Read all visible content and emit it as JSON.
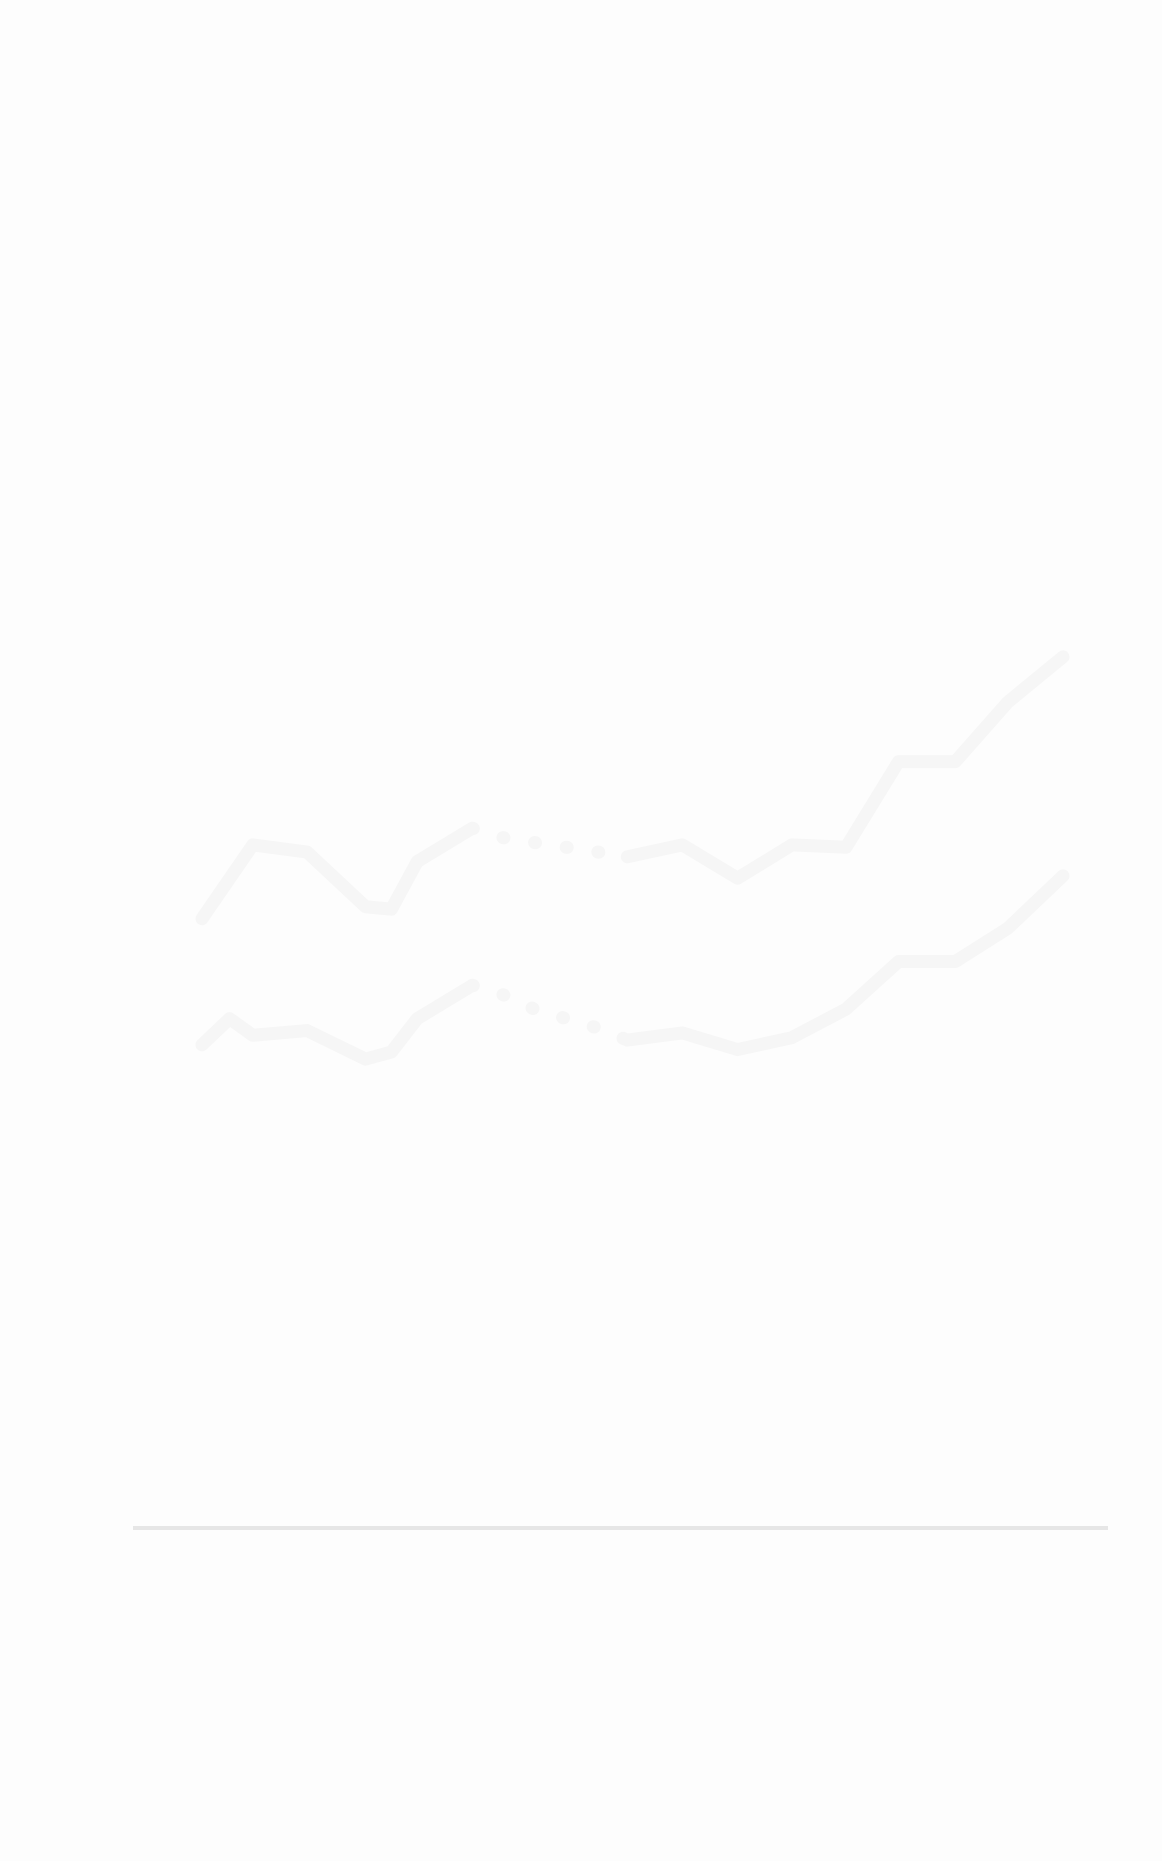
{
  "chart_data": {
    "type": "line",
    "xlim": [
      0,
      100
    ],
    "ylim": [
      0,
      100
    ],
    "series": [
      {
        "color": "#f6f6f6",
        "dashed": false,
        "x": [
          0,
          5.9,
          12.2,
          19,
          22,
          25,
          31.4,
          35,
          38.6,
          42.3,
          46,
          49.4,
          55.8,
          62.2,
          68.5,
          74.8,
          80.9,
          87.5,
          93.6,
          100
        ],
        "values": [
          32,
          47.5,
          46,
          34.5,
          34,
          44,
          51,
          null,
          null,
          null,
          null,
          45,
          47.5,
          40.5,
          47.5,
          47,
          65,
          65,
          77.5,
          87
        ]
      },
      {
        "color": "#f6f6f6",
        "dashed": true,
        "x": [
          0,
          5.9,
          12.2,
          19,
          22,
          25,
          31.4,
          35,
          38.6,
          42.3,
          46,
          49.4,
          55.8,
          62.2,
          68.5,
          74.8,
          80.9,
          87.5,
          93.6,
          100
        ],
        "values": [
          null,
          null,
          null,
          null,
          null,
          null,
          51,
          49,
          48,
          47,
          46,
          45,
          null,
          null,
          null,
          null,
          null,
          null,
          null,
          null
        ]
      },
      {
        "color": "#f6f6f6",
        "dashed": false,
        "x": [
          0,
          3.2,
          5.9,
          12.2,
          19,
          22,
          25,
          31.4,
          35,
          38.6,
          42.3,
          46,
          49.4,
          55.8,
          62.2,
          68.5,
          74.8,
          80.9,
          87.5,
          93.6,
          100
        ],
        "values": [
          5.5,
          11,
          7.5,
          8.5,
          2.5,
          4,
          11,
          18,
          null,
          null,
          null,
          null,
          6.5,
          8,
          4.5,
          7,
          13,
          23,
          23,
          30,
          41
        ]
      },
      {
        "color": "#f6f6f6",
        "dashed": true,
        "x": [
          0,
          3.2,
          5.9,
          12.2,
          19,
          22,
          25,
          31.4,
          35,
          38.6,
          42.3,
          46,
          49.4,
          55.8,
          62.2,
          68.5,
          74.8,
          80.9,
          87.5,
          93.6,
          100
        ],
        "values": [
          null,
          null,
          null,
          null,
          null,
          null,
          null,
          18,
          16,
          13,
          11,
          9,
          6.5,
          null,
          null,
          null,
          null,
          null,
          null,
          null,
          null
        ]
      }
    ]
  }
}
